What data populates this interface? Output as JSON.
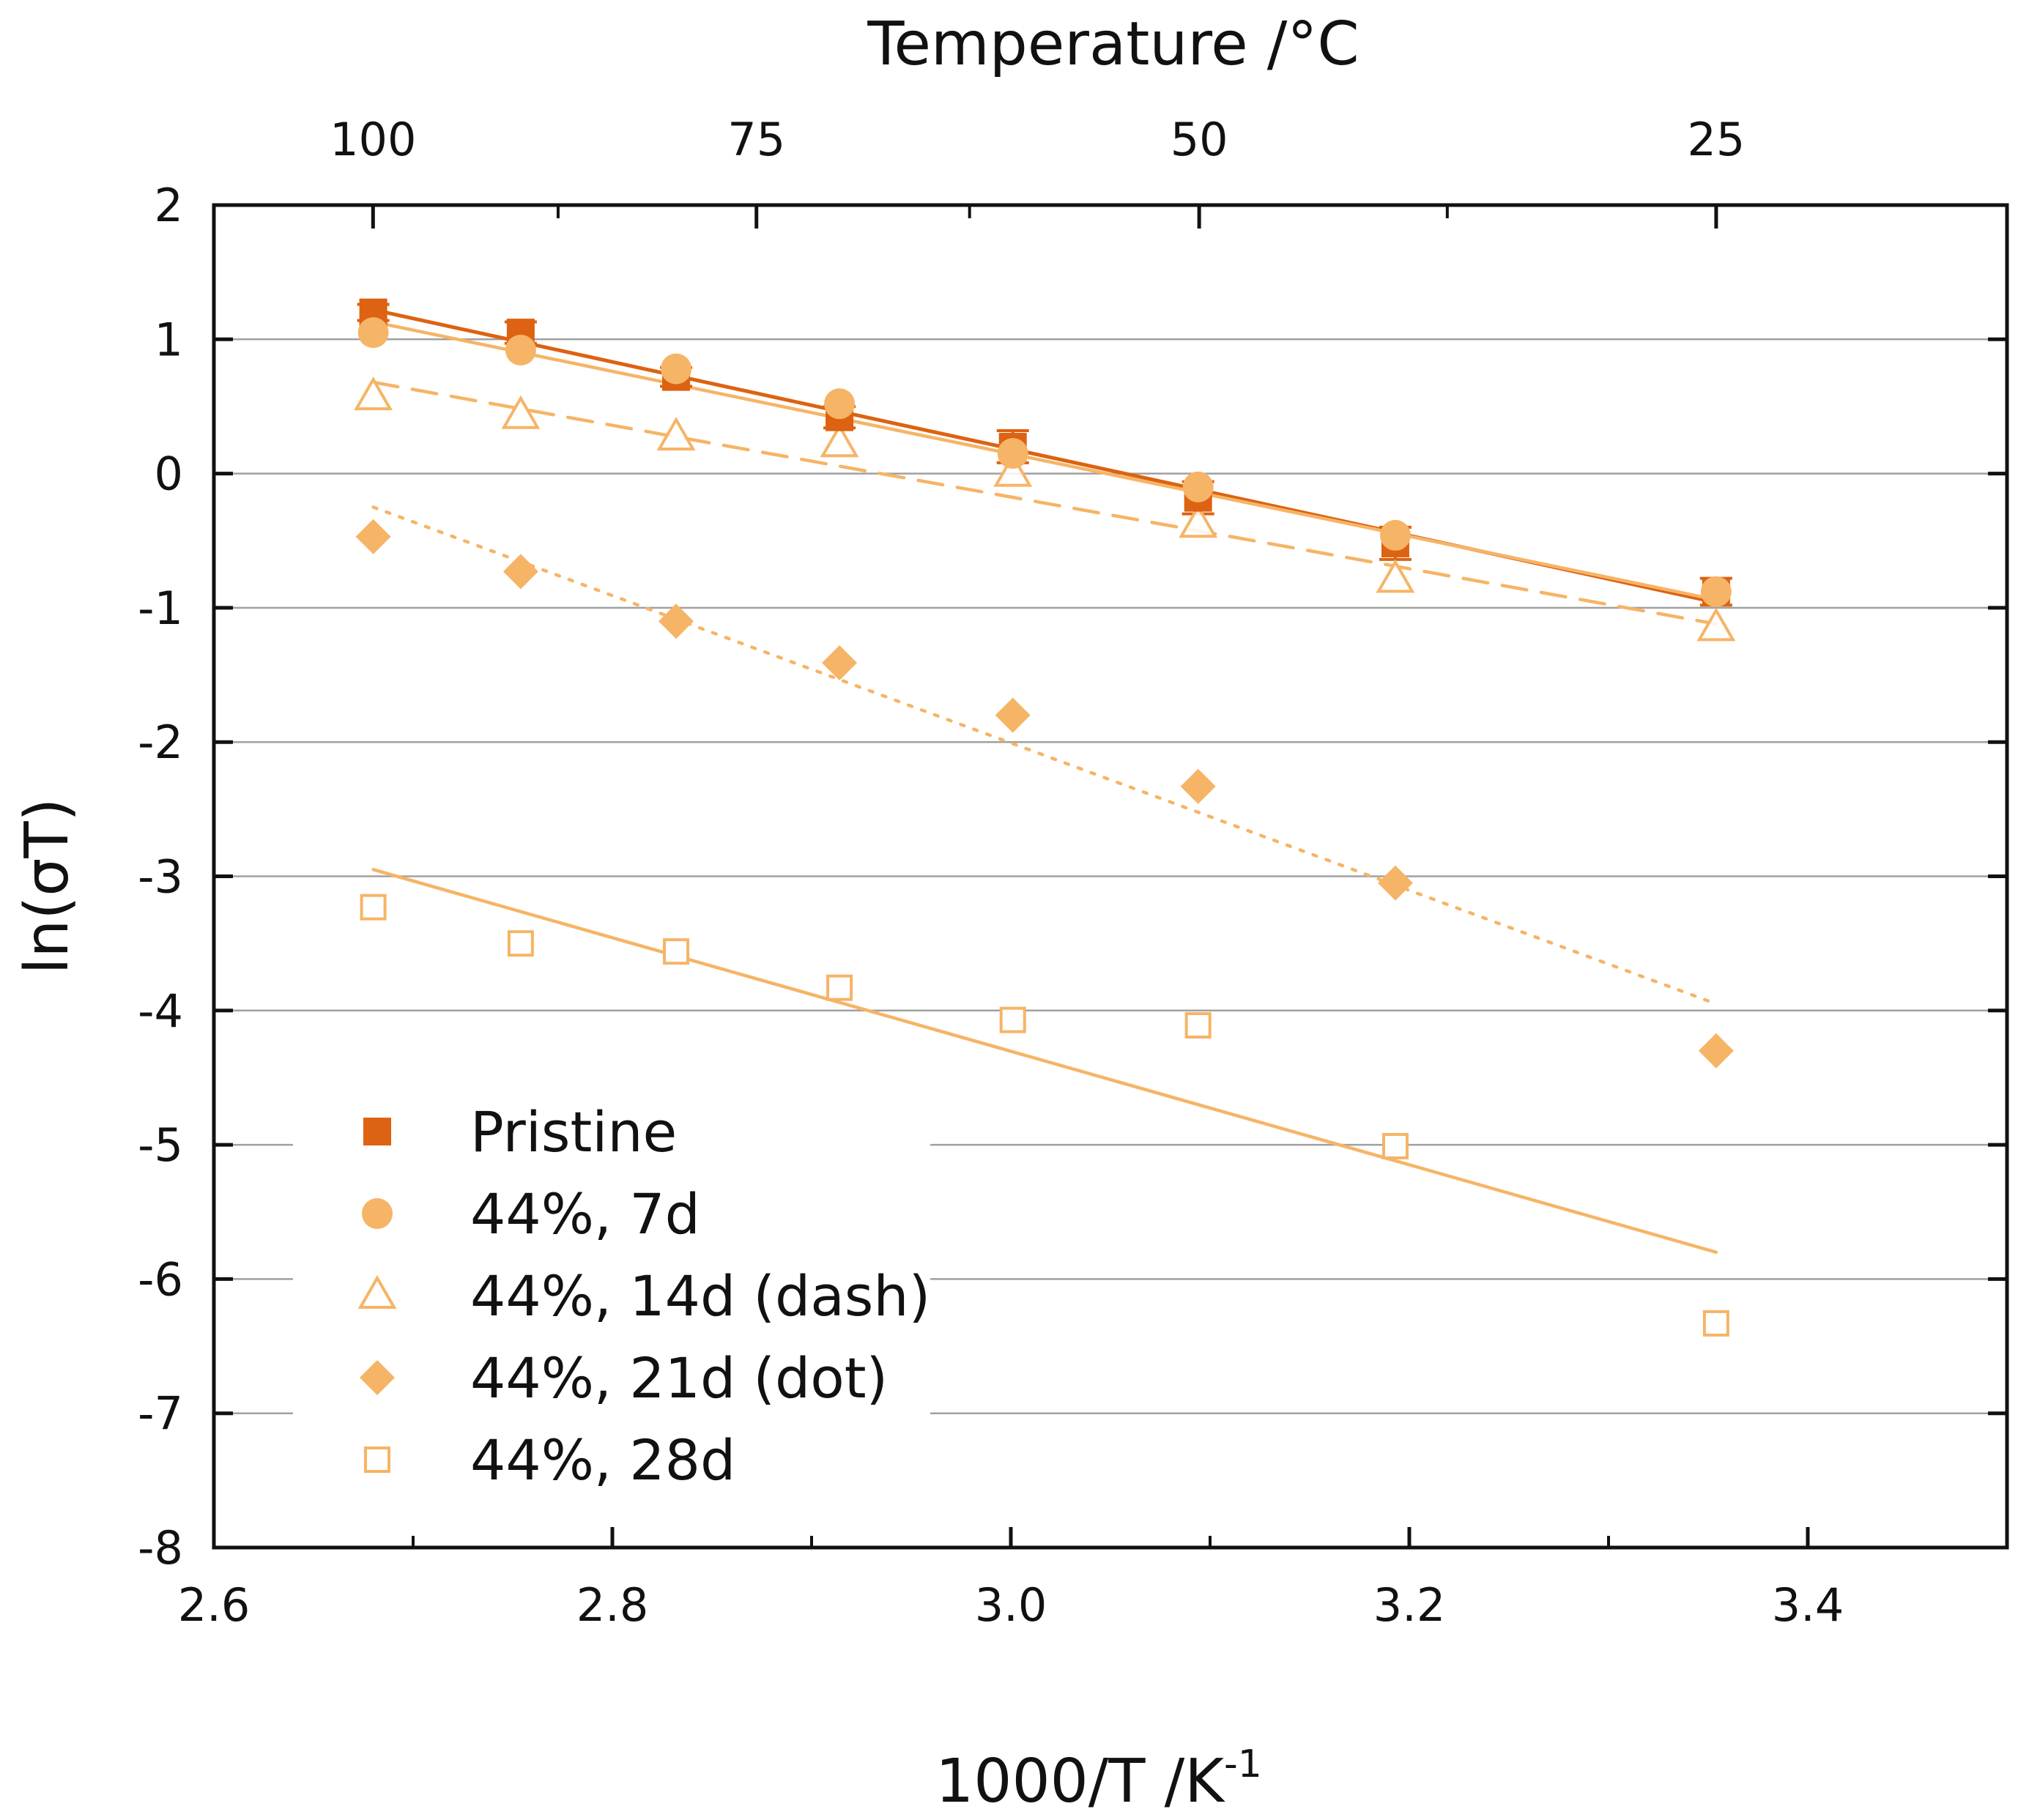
{
  "chart_data": {
    "type": "scatter",
    "title": "",
    "xlabel": "1000/T /K",
    "xlabel_superscript": "-1",
    "ylabel": "ln(σT)",
    "top_xlabel": "Temperature /°C",
    "xlim": [
      2.6,
      3.5
    ],
    "ylim": [
      -8,
      2
    ],
    "x_ticks": [
      "2.6",
      "2.8",
      "3.0",
      "3.2",
      "3.4"
    ],
    "x_tick_values": [
      2.6,
      2.8,
      3.0,
      3.2,
      3.4
    ],
    "y_ticks": [
      "2",
      "1",
      "0",
      "-1",
      "-2",
      "-3",
      "-4",
      "-5",
      "-6",
      "-7",
      "-8"
    ],
    "y_tick_values": [
      2,
      1,
      0,
      -1,
      -2,
      -3,
      -4,
      -5,
      -6,
      -7,
      -8
    ],
    "top_ticks": [
      {
        "label": "100",
        "celsius": 100
      },
      {
        "label": "75",
        "celsius": 75
      },
      {
        "label": "50",
        "celsius": 50
      },
      {
        "label": "25",
        "celsius": 25
      }
    ],
    "top_minor_ticks_celsius": [
      87.5,
      62.5,
      37.5
    ],
    "grid": "horizontal",
    "legend_position": "bottom-left",
    "colors": {
      "pristine": "#dd6211",
      "aged": "#f6b466",
      "grid": "#a0a0a0",
      "axis": "#111111"
    },
    "x": [
      2.68,
      2.754,
      2.832,
      2.914,
      3.001,
      3.094,
      3.193,
      3.354
    ],
    "series": [
      {
        "name": "Pristine",
        "marker": "square-filled",
        "color": "#dd6211",
        "values": [
          1.2,
          1.05,
          0.72,
          0.42,
          0.2,
          -0.18,
          -0.52,
          -0.88
        ],
        "errors": [
          0.06,
          0.08,
          0.07,
          0.08,
          0.12,
          0.12,
          0.12,
          0.1
        ],
        "fit": {
          "style": "solid",
          "x": [
            2.68,
            3.354
          ],
          "y": [
            1.22,
            -0.96
          ]
        }
      },
      {
        "name": "44%, 7d",
        "marker": "circle-filled",
        "color": "#f6b466",
        "values": [
          1.05,
          0.92,
          0.78,
          0.52,
          0.15,
          -0.1,
          -0.46,
          -0.88
        ],
        "fit": {
          "style": "solid",
          "x": [
            2.68,
            3.354
          ],
          "y": [
            1.13,
            -0.94
          ]
        }
      },
      {
        "name": "44%, 14d (dash)",
        "marker": "triangle-open",
        "color": "#f6b466",
        "values": [
          0.57,
          0.43,
          0.27,
          0.22,
          0.0,
          -0.38,
          -0.79,
          -1.15
        ],
        "fit": {
          "style": "dash",
          "x": [
            2.68,
            3.354
          ],
          "y": [
            0.68,
            -1.12
          ]
        }
      },
      {
        "name": "44%, 21d (dot)",
        "marker": "diamond-filled",
        "color": "#f6b466",
        "values": [
          -0.47,
          -0.73,
          -1.1,
          -1.41,
          -1.8,
          -2.33,
          -3.05,
          -4.3
        ],
        "fit": {
          "style": "dot",
          "x": [
            2.68,
            3.354
          ],
          "y": [
            -0.25,
            -3.95
          ]
        }
      },
      {
        "name": "44%, 28d",
        "marker": "square-open",
        "color": "#f6b466",
        "values": [
          -3.23,
          -3.5,
          -3.56,
          -3.83,
          -4.07,
          -4.11,
          -5.01,
          -6.33
        ],
        "fit": {
          "style": "solid",
          "x": [
            2.68,
            3.354
          ],
          "y": [
            -2.95,
            -5.8
          ]
        }
      }
    ]
  }
}
